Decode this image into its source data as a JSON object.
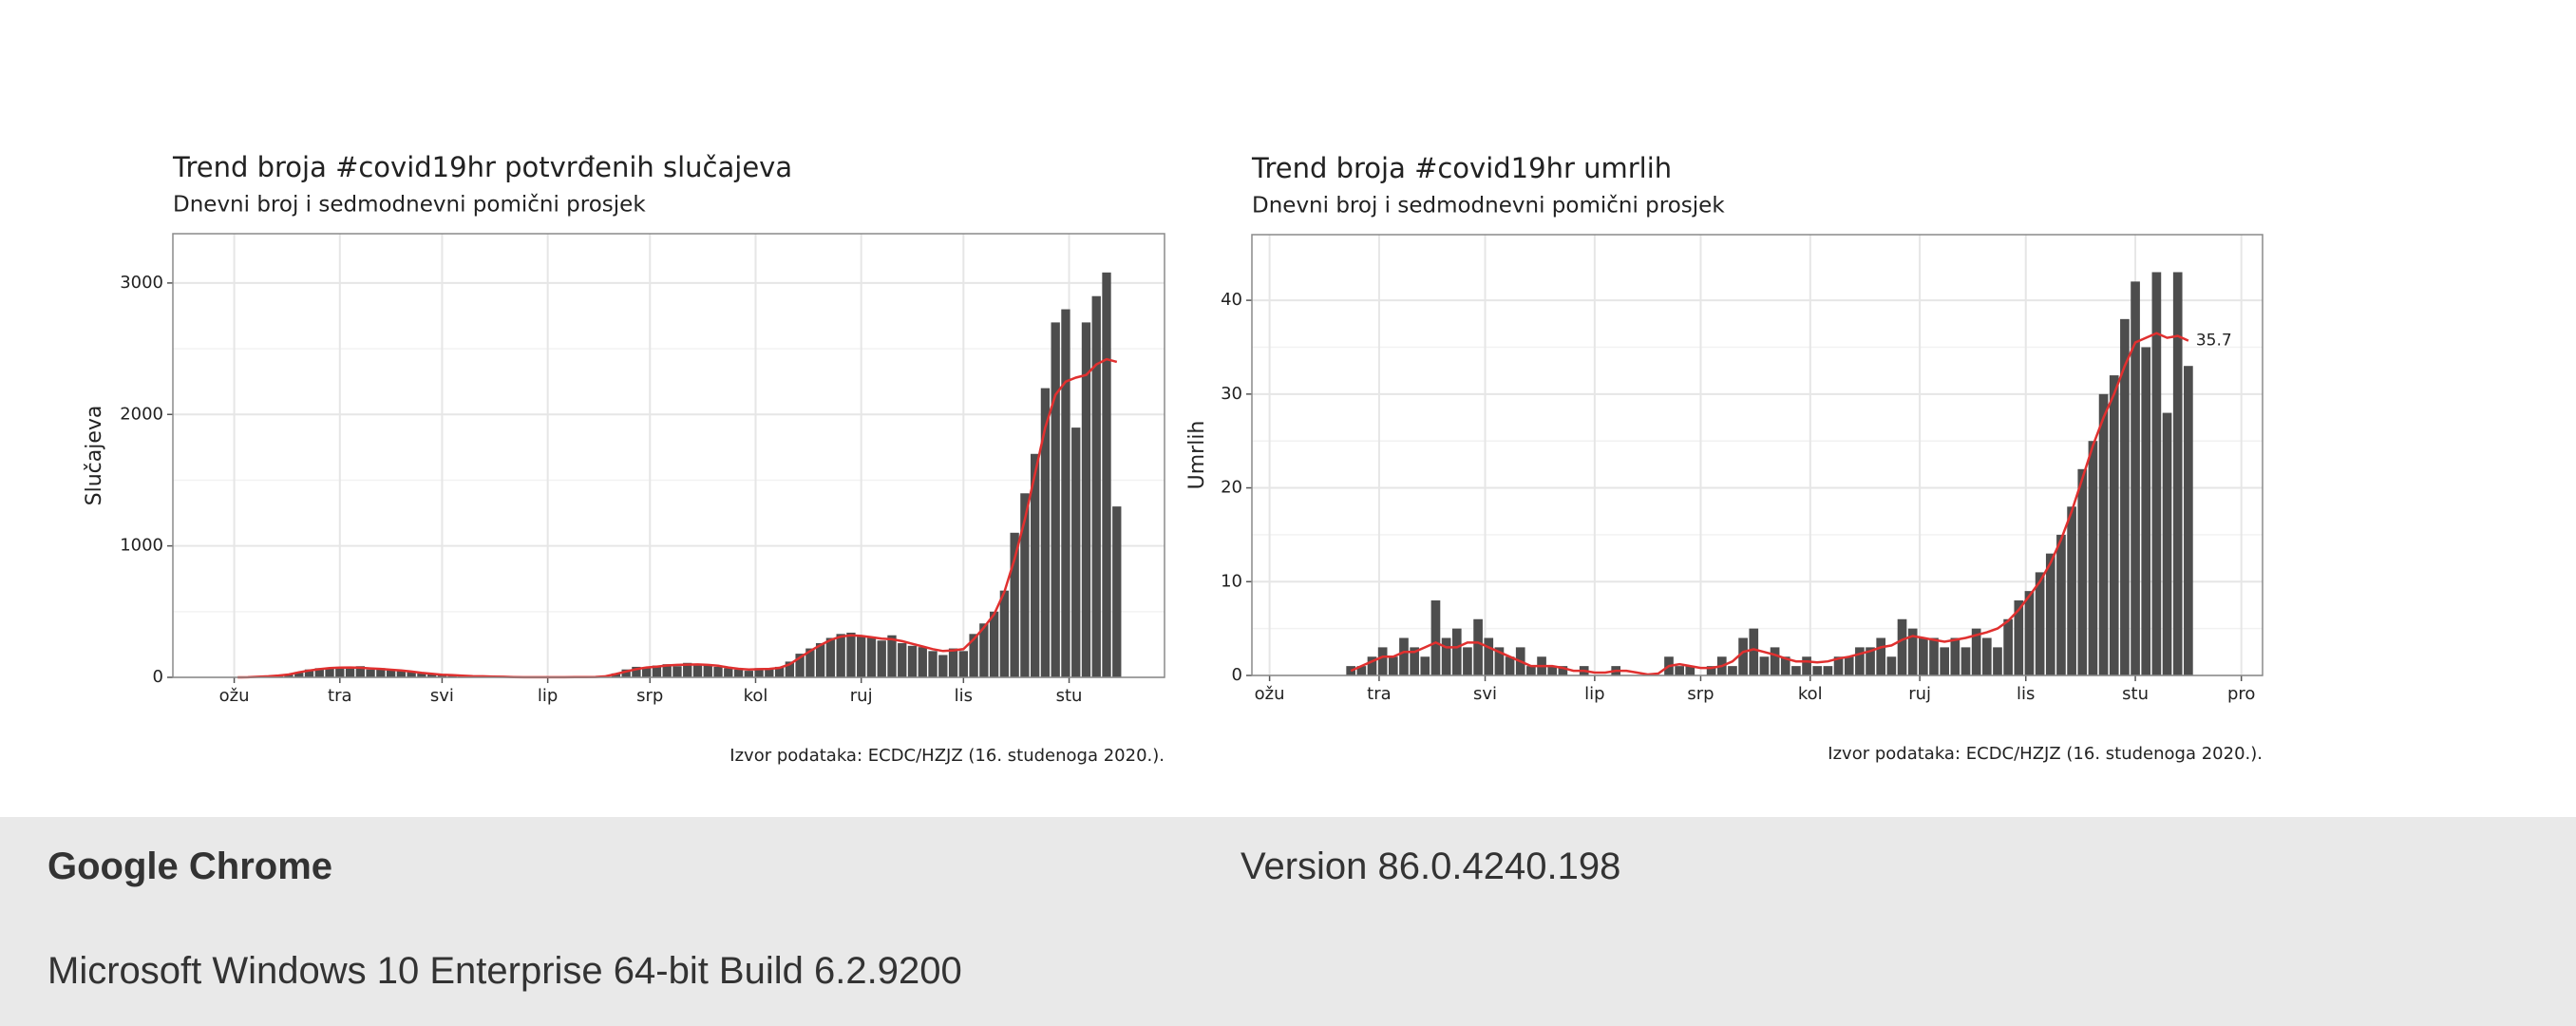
{
  "chart_data": [
    {
      "type": "bar",
      "title": "Trend broja #covid19hr potvrđenih slučajeva",
      "subtitle": "Dnevni broj i sedmodnevni pomični prosjek",
      "y_label": "Slučajeva",
      "source": "Izvor podataka: ECDC/HZJZ (16. studenoga 2020.).",
      "x": [
        62,
        65,
        68,
        71,
        74,
        77,
        80,
        83,
        86,
        89,
        92,
        95,
        98,
        101,
        104,
        107,
        110,
        113,
        116,
        119,
        122,
        125,
        128,
        131,
        134,
        137,
        140,
        143,
        146,
        149,
        152,
        155,
        158,
        161,
        164,
        167,
        170,
        173,
        176,
        179,
        182,
        185,
        188,
        191,
        194,
        197,
        200,
        203,
        206,
        209,
        212,
        215,
        218,
        221,
        224,
        227,
        230,
        233,
        236,
        239,
        242,
        245,
        248,
        251,
        254,
        257,
        260,
        263,
        266,
        269,
        272,
        275,
        278,
        281,
        284,
        287,
        290,
        293,
        296,
        299,
        302,
        305,
        308,
        311,
        314,
        317,
        320
      ],
      "series": [
        {
          "type": "bar",
          "color": "#4d4d4d",
          "values": [
            0,
            1,
            5,
            10,
            15,
            20,
            40,
            60,
            70,
            75,
            80,
            70,
            85,
            60,
            70,
            55,
            50,
            40,
            30,
            25,
            15,
            20,
            10,
            8,
            10,
            5,
            3,
            2,
            1,
            0,
            1,
            0,
            2,
            1,
            3,
            2,
            5,
            30,
            60,
            80,
            70,
            90,
            100,
            85,
            110,
            90,
            100,
            80,
            70,
            60,
            50,
            70,
            60,
            80,
            120,
            180,
            220,
            260,
            300,
            330,
            340,
            310,
            300,
            280,
            320,
            260,
            240,
            230,
            200,
            170,
            220,
            200,
            330,
            410,
            500,
            660,
            1100,
            1400,
            1700,
            2200,
            2700,
            2800,
            1900,
            2700,
            2900,
            3080,
            1300
          ]
        },
        {
          "type": "line",
          "color": "#e0302f",
          "values": [
            0,
            1,
            4,
            8,
            14,
            22,
            38,
            52,
            62,
            70,
            74,
            75,
            73,
            68,
            64,
            58,
            52,
            44,
            34,
            27,
            20,
            17,
            12,
            9,
            8,
            6,
            4,
            2,
            1,
            1,
            1,
            1,
            1,
            2,
            2,
            3,
            8,
            25,
            45,
            62,
            75,
            82,
            90,
            95,
            97,
            98,
            95,
            88,
            75,
            65,
            60,
            62,
            64,
            72,
            100,
            150,
            200,
            245,
            285,
            310,
            320,
            315,
            305,
            295,
            290,
            275,
            255,
            235,
            215,
            200,
            205,
            215,
            290,
            380,
            480,
            650,
            900,
            1200,
            1550,
            1900,
            2150,
            2250,
            2280,
            2300,
            2380,
            2420,
            2400
          ]
        }
      ],
      "xlim": [
        43,
        334
      ],
      "xticks": [
        {
          "value": 61,
          "label": "ožu"
        },
        {
          "value": 92,
          "label": "tra"
        },
        {
          "value": 122,
          "label": "svi"
        },
        {
          "value": 153,
          "label": "lip"
        },
        {
          "value": 183,
          "label": "srp"
        },
        {
          "value": 214,
          "label": "kol"
        },
        {
          "value": 245,
          "label": "ruj"
        },
        {
          "value": 275,
          "label": "lis"
        },
        {
          "value": 306,
          "label": "stu"
        }
      ],
      "ylim": [
        0,
        3375
      ],
      "yticks": [
        0,
        1000,
        2000,
        3000
      ],
      "grid": true
    },
    {
      "type": "bar",
      "title": "Trend broja #covid19hr umrlih",
      "subtitle": "Dnevni broj i sedmodnevni pomični prosjek",
      "y_label": "Umrlih",
      "source": "Izvor podataka: ECDC/HZJZ (16. studenoga 2020.).",
      "x": [
        84,
        87,
        90,
        93,
        96,
        99,
        102,
        105,
        108,
        111,
        114,
        117,
        120,
        123,
        126,
        129,
        132,
        135,
        138,
        141,
        144,
        147,
        150,
        153,
        156,
        159,
        162,
        165,
        168,
        171,
        174,
        177,
        180,
        183,
        186,
        189,
        192,
        195,
        198,
        201,
        204,
        207,
        210,
        213,
        216,
        219,
        222,
        225,
        228,
        231,
        234,
        237,
        240,
        243,
        246,
        249,
        252,
        255,
        258,
        261,
        264,
        267,
        270,
        273,
        276,
        279,
        282,
        285,
        288,
        291,
        294,
        297,
        300,
        303,
        306,
        309,
        312,
        315,
        318,
        321
      ],
      "series": [
        {
          "type": "bar",
          "color": "#4d4d4d",
          "values": [
            1,
            1,
            2,
            3,
            2,
            4,
            3,
            2,
            8,
            4,
            5,
            3,
            6,
            4,
            3,
            2,
            3,
            1,
            2,
            1,
            1,
            0,
            1,
            0,
            0,
            1,
            0,
            0,
            0,
            0,
            2,
            1,
            1,
            0,
            1,
            2,
            1,
            4,
            5,
            2,
            3,
            2,
            1,
            2,
            1,
            1,
            2,
            2,
            3,
            3,
            4,
            2,
            6,
            5,
            4,
            4,
            3,
            4,
            3,
            5,
            4,
            3,
            6,
            8,
            9,
            11,
            13,
            15,
            18,
            22,
            25,
            30,
            32,
            38,
            42,
            35,
            43,
            28,
            43,
            33
          ]
        },
        {
          "type": "line",
          "color": "#e0302f",
          "values": [
            0.5,
            1,
            1.5,
            2,
            2,
            2.5,
            2.5,
            3,
            3.5,
            3,
            3,
            3.5,
            3.5,
            3,
            2.5,
            2,
            1.5,
            1,
            1,
            1,
            0.8,
            0.5,
            0.5,
            0.3,
            0.3,
            0.5,
            0.5,
            0.3,
            0.1,
            0.2,
            1,
            1.2,
            1,
            0.8,
            0.8,
            1,
            1.5,
            2.5,
            2.8,
            2.5,
            2.2,
            1.8,
            1.5,
            1.5,
            1.4,
            1.5,
            1.8,
            2,
            2.3,
            2.6,
            3,
            3.2,
            3.8,
            4.2,
            4,
            3.8,
            3.6,
            3.8,
            4,
            4.3,
            4.6,
            5,
            5.8,
            7,
            8.5,
            10,
            12,
            14.5,
            17.5,
            21,
            24.5,
            27.5,
            30,
            33,
            35.5,
            36,
            36.5,
            36,
            36.2,
            35.7
          ]
        }
      ],
      "annotation": {
        "x": 321,
        "value": 35.7,
        "label": "35.7"
      },
      "xlim": [
        56,
        342
      ],
      "xticks": [
        {
          "value": 61,
          "label": "ožu"
        },
        {
          "value": 92,
          "label": "tra"
        },
        {
          "value": 122,
          "label": "svi"
        },
        {
          "value": 153,
          "label": "lip"
        },
        {
          "value": 183,
          "label": "srp"
        },
        {
          "value": 214,
          "label": "kol"
        },
        {
          "value": 245,
          "label": "ruj"
        },
        {
          "value": 275,
          "label": "lis"
        },
        {
          "value": 306,
          "label": "stu"
        },
        {
          "value": 336,
          "label": "pro"
        }
      ],
      "ylim": [
        0,
        47
      ],
      "yticks": [
        0,
        10,
        20,
        30,
        40
      ],
      "grid": true
    }
  ],
  "window": {
    "browser": "Google Chrome",
    "version": "Version 86.0.4240.198",
    "os": "Microsoft Windows 10 Enterprise 64-bit Build 6.2.9200"
  }
}
